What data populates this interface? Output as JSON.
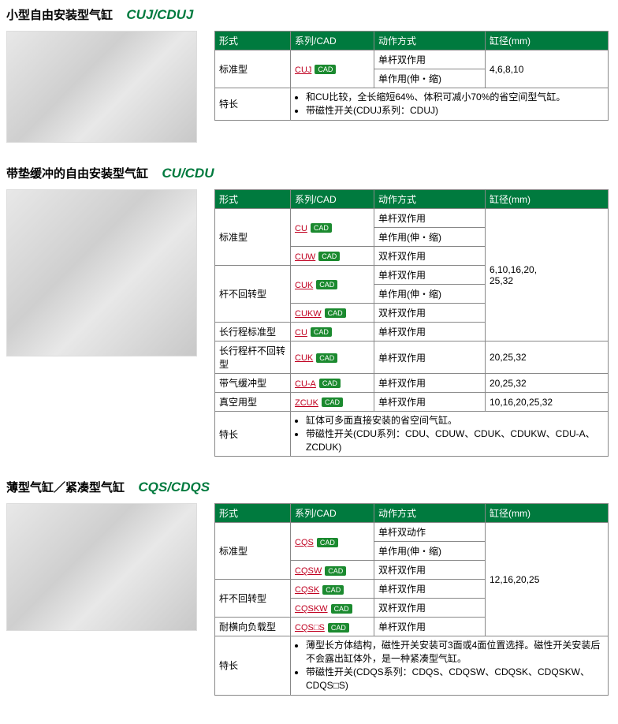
{
  "colors": {
    "header_bg": "#007a3e",
    "link": "#c00020",
    "badge": "#1b8a2f"
  },
  "headers": {
    "form": "形式",
    "series": "系列/CAD",
    "action": "动作方式",
    "bore": "缸径(mm)"
  },
  "cad": "CAD",
  "labels": {
    "std": "标准型",
    "nonrot": "杆不回转型",
    "longstd": "长行程标准型",
    "longnr": "长行程杆不回转型",
    "aircush": "带气缓冲型",
    "vacuum": "真空用型",
    "lateral": "耐横向负载型",
    "notes": "特长"
  },
  "actions": {
    "sda": "单杆双作用",
    "sdd": "单杆双动作",
    "sas": "单作用(伸・缩)",
    "dda": "双杆双作用"
  },
  "s1": {
    "title_jp": "小型自由安装型气缸",
    "title_model": "CUJ/CDUJ",
    "series": "CUJ",
    "bore": "4,6,8,10",
    "note1": "和CU比较，全长缩短64%、体积可减小70%的省空间型气缸。",
    "note2": "带磁性开关(CDUJ系列：CDUJ)"
  },
  "s2": {
    "title_jp": "带垫缓冲的自由安装型气缸",
    "title_model": "CU/CDU",
    "series": {
      "cu": "CU",
      "cuw": "CUW",
      "cuk": "CUK",
      "cukw": "CUKW",
      "cua": "CU-A",
      "zcuk": "ZCUK"
    },
    "bore1": "6,10,16,20,\n25,32",
    "bore2": "20,25,32",
    "bore3": "10,16,20,25,32",
    "note1": "缸体可多面直接安装的省空间气缸。",
    "note2": "带磁性开关(CDU系列：CDU、CDUW、CDUK、CDUKW、CDU-A、ZCDUK)"
  },
  "s3": {
    "title_jp": "薄型气缸／紧凑型气缸",
    "title_model": "CQS/CDQS",
    "series": {
      "cqs": "CQS",
      "cqsw": "CQSW",
      "cqsk": "CQSK",
      "cqskw": "CQSKW",
      "cqsos": "CQS□S"
    },
    "bore": "12,16,20,25",
    "note1": "薄型长方体结构，磁性开关安装可3面或4面位置选择。磁性开关安装后不会露出缸体外，是一种紧凑型气缸。",
    "note2": "带磁性开关(CDQS系列：CDQS、CDQSW、CDQSK、CDQSKW、CDQS□S)"
  }
}
